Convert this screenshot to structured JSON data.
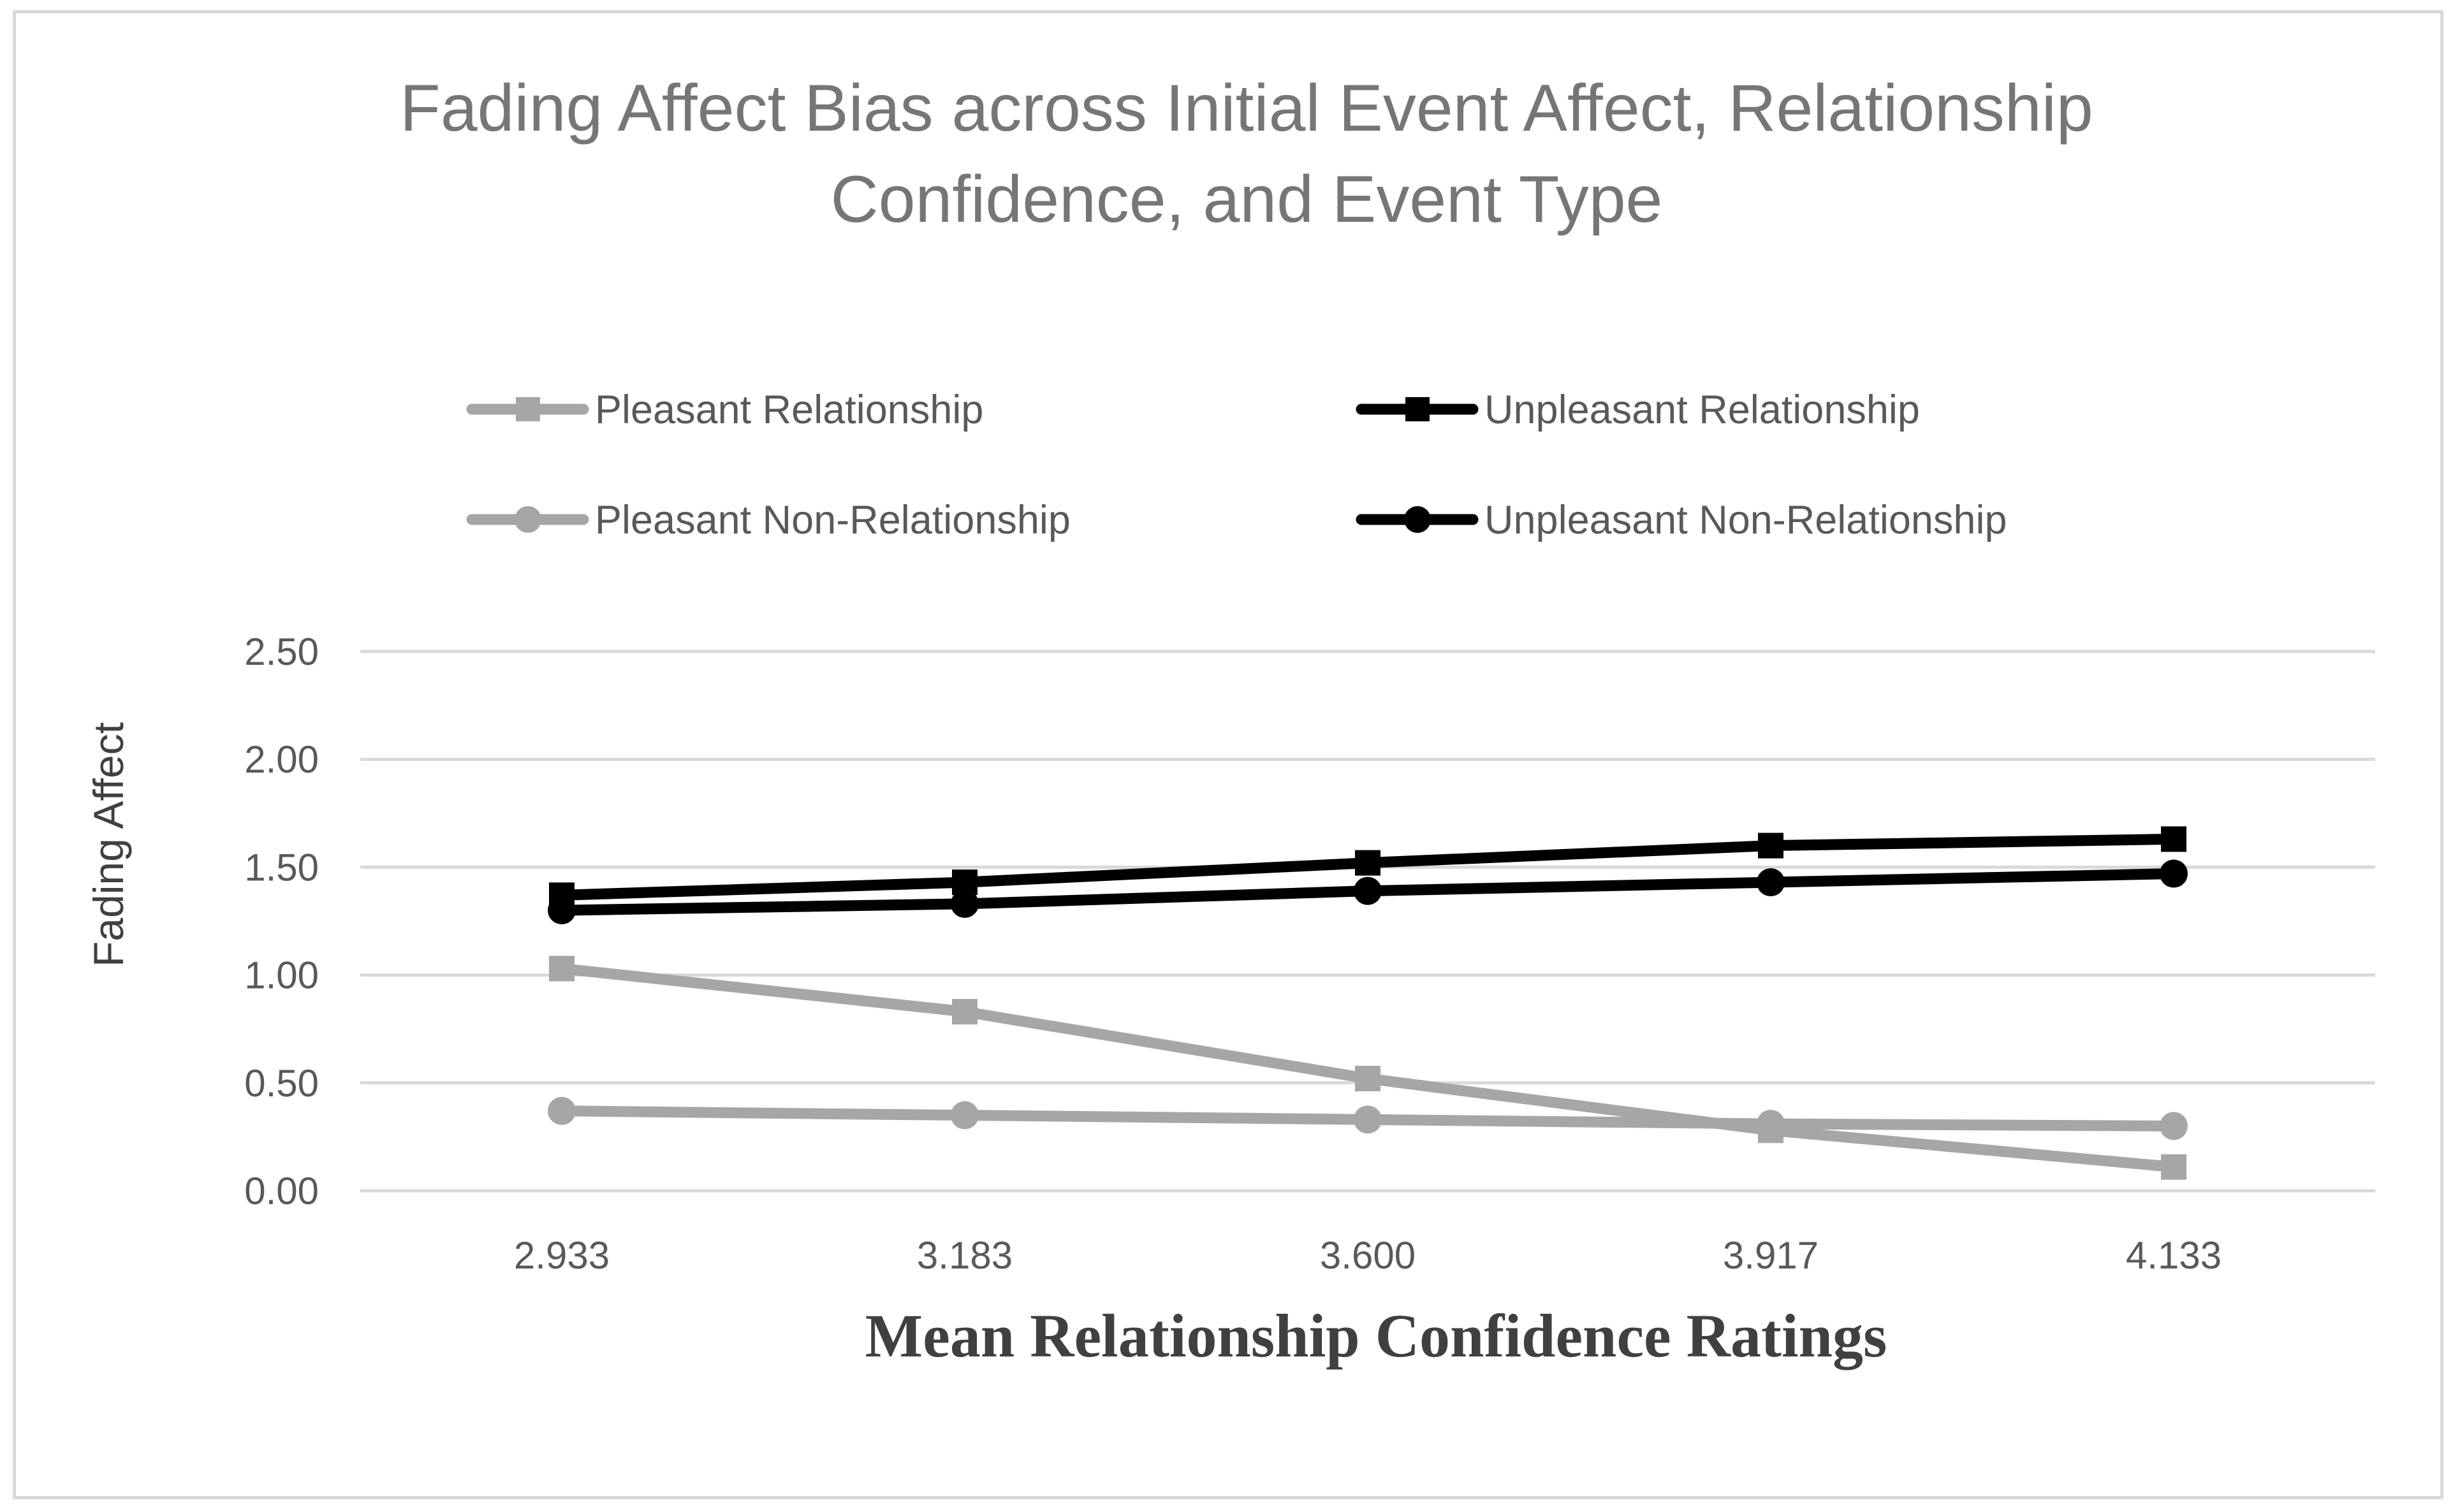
{
  "chart_data": {
    "type": "line",
    "title_lines": [
      "Fading Affect Bias across Initial Event Affect, Relationship",
      "Confidence, and Event Type"
    ],
    "xlabel": "Mean Relationship Confidence Ratings",
    "ylabel": "Fading Affect",
    "categories": [
      "2.933",
      "3.183",
      "3.600",
      "3.917",
      "4.133"
    ],
    "ylim": [
      0,
      2.5
    ],
    "yticks": [
      0,
      0.5,
      1.0,
      1.5,
      2.0,
      2.5
    ],
    "ytick_labels": [
      "0.00",
      "0.50",
      "1.00",
      "1.50",
      "2.00",
      "2.50"
    ],
    "grid": true,
    "legend_position": "top",
    "series": [
      {
        "name": "Pleasant Relationship",
        "color": "#a6a6a6",
        "marker": "square",
        "values": [
          1.03,
          0.83,
          0.52,
          0.28,
          0.11
        ]
      },
      {
        "name": "Unpleasant Relationship",
        "color": "#000000",
        "marker": "square",
        "values": [
          1.37,
          1.43,
          1.52,
          1.6,
          1.63
        ]
      },
      {
        "name": "Pleasant Non-Relationship",
        "color": "#a6a6a6",
        "marker": "circle",
        "values": [
          0.37,
          0.35,
          0.33,
          0.31,
          0.3
        ]
      },
      {
        "name": "Unpleasant Non-Relationship",
        "color": "#000000",
        "marker": "circle",
        "values": [
          1.3,
          1.33,
          1.39,
          1.43,
          1.47
        ]
      }
    ]
  }
}
